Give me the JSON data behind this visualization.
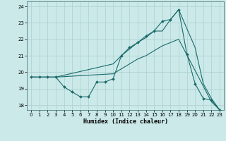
{
  "xlabel": "Humidex (Indice chaleur)",
  "xlim": [
    -0.5,
    23.5
  ],
  "ylim": [
    17.7,
    24.3
  ],
  "yticks": [
    18,
    19,
    20,
    21,
    22,
    23,
    24
  ],
  "xticks": [
    0,
    1,
    2,
    3,
    4,
    5,
    6,
    7,
    8,
    9,
    10,
    11,
    12,
    13,
    14,
    15,
    16,
    17,
    18,
    19,
    20,
    21,
    22,
    23
  ],
  "bg_color": "#cce9e9",
  "grid_color": "#aacfcf",
  "line_color": "#1a6b6b",
  "line1_x": [
    0,
    1,
    2,
    3,
    4,
    5,
    6,
    7,
    8,
    9,
    10,
    11,
    12,
    13,
    14,
    15,
    16,
    17,
    18,
    19,
    20,
    21,
    22,
    23
  ],
  "line1_y": [
    19.7,
    19.7,
    19.7,
    19.7,
    19.1,
    18.8,
    18.5,
    18.5,
    19.4,
    19.4,
    19.6,
    21.0,
    21.5,
    21.8,
    22.2,
    22.5,
    23.1,
    23.2,
    23.8,
    21.1,
    19.3,
    18.4,
    18.3,
    17.7
  ],
  "line2_x": [
    0,
    1,
    2,
    3,
    10,
    11,
    12,
    13,
    14,
    15,
    16,
    17,
    18,
    19,
    20,
    21,
    22,
    23
  ],
  "line2_y": [
    19.7,
    19.7,
    19.7,
    19.7,
    20.5,
    21.0,
    21.4,
    21.8,
    22.1,
    22.5,
    22.5,
    23.2,
    23.8,
    22.65,
    21.5,
    19.3,
    18.4,
    17.7
  ],
  "line3_x": [
    0,
    1,
    2,
    3,
    10,
    11,
    12,
    13,
    14,
    15,
    16,
    17,
    18,
    19,
    20,
    21,
    22,
    23
  ],
  "line3_y": [
    19.7,
    19.7,
    19.7,
    19.7,
    19.9,
    20.2,
    20.5,
    20.8,
    21.0,
    21.3,
    21.6,
    21.8,
    22.0,
    21.05,
    20.1,
    19.15,
    18.2,
    17.7
  ]
}
